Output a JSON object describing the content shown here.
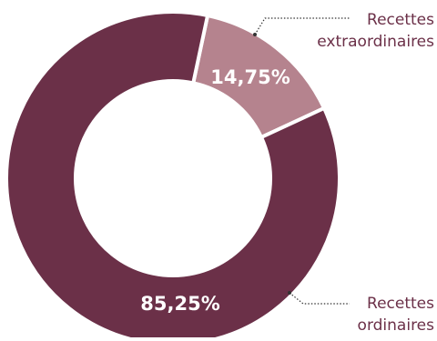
{
  "chart_data": {
    "type": "pie",
    "donut": true,
    "start_angle_deg": 12,
    "slices": [
      {
        "label_lines": [
          "Recettes",
          "extraordinaires"
        ],
        "value": 14.75,
        "value_label": "14,75%",
        "color": "#b5838e"
      },
      {
        "label_lines": [
          "Recettes",
          "ordinaires"
        ],
        "value": 85.25,
        "value_label": "85,25%",
        "color": "#6b3048"
      }
    ],
    "separator_color": "#ffffff"
  }
}
